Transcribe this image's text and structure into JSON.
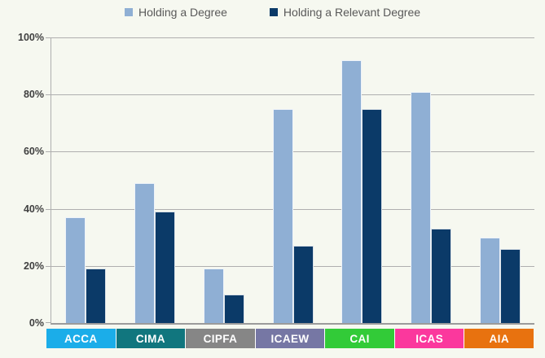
{
  "chart_data": {
    "type": "bar",
    "title": "",
    "categories": [
      "ACCA",
      "CIMA",
      "CIPFA",
      "ICAEW",
      "CAI",
      "ICAS",
      "AIA"
    ],
    "category_colors": [
      "#1BADE9",
      "#11767E",
      "#868686",
      "#7677A4",
      "#32CB38",
      "#FB389D",
      "#E8720F"
    ],
    "series": [
      {
        "name": "Holding a Degree",
        "color": "#8FAFD4",
        "values": [
          37,
          49,
          19,
          75,
          92,
          81,
          30
        ]
      },
      {
        "name": "Holding a Relevant Degree",
        "color": "#0B3A68",
        "values": [
          19,
          39,
          10,
          27,
          75,
          33,
          26
        ]
      }
    ],
    "y_ticks": [
      "100%",
      "80%",
      "60%",
      "40%",
      "20%",
      "0%"
    ],
    "ylim": [
      0,
      100
    ],
    "grid": true,
    "legend_position": "top"
  },
  "styles": {
    "background": "#F6F8F0",
    "gridline_color": "#AFAFAF",
    "axis_color": "#9B9B9B",
    "tick_label_color": "#404040",
    "legend_text_color": "#595959",
    "category_text_color": "#FFFFFF"
  }
}
